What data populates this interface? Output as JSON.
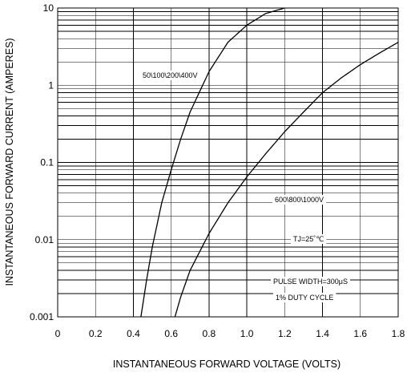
{
  "chart_data": {
    "type": "line",
    "title": "",
    "xlabel": "INSTANTANEOUS FORWARD VOLTAGE (VOLTS)",
    "ylabel": "INSTANTANEOUS FORWARD CURRENT (AMPERES)",
    "xlim": [
      0,
      1.8
    ],
    "ylim": [
      0.001,
      10
    ],
    "y_scale": "log",
    "grid": true,
    "x_ticks": [
      "0",
      "0.2",
      "0.4",
      "0.6",
      "0.8",
      "1.0",
      "1.2",
      "1.4",
      "1.6",
      "1.8"
    ],
    "y_ticks": [
      "0.001",
      "0.01",
      "0.1",
      "1",
      "10"
    ],
    "series": [
      {
        "name": "50\\100\\200\\400V",
        "points": [
          [
            0.44,
            0.001
          ],
          [
            0.47,
            0.003
          ],
          [
            0.5,
            0.008
          ],
          [
            0.55,
            0.03
          ],
          [
            0.6,
            0.08
          ],
          [
            0.65,
            0.2
          ],
          [
            0.7,
            0.45
          ],
          [
            0.8,
            1.5
          ],
          [
            0.9,
            3.6
          ],
          [
            1.0,
            6.0
          ],
          [
            1.1,
            8.5
          ],
          [
            1.2,
            10
          ]
        ]
      },
      {
        "name": "600\\800\\1000V",
        "points": [
          [
            0.62,
            0.001
          ],
          [
            0.65,
            0.0018
          ],
          [
            0.7,
            0.004
          ],
          [
            0.8,
            0.012
          ],
          [
            0.9,
            0.03
          ],
          [
            1.0,
            0.065
          ],
          [
            1.1,
            0.13
          ],
          [
            1.2,
            0.25
          ],
          [
            1.3,
            0.45
          ],
          [
            1.4,
            0.8
          ],
          [
            1.5,
            1.25
          ],
          [
            1.6,
            1.85
          ],
          [
            1.7,
            2.6
          ],
          [
            1.8,
            3.6
          ]
        ]
      }
    ],
    "annotations": [
      "TJ=25˚℃",
      "PULSE WIDTH=300μS",
      "1% DUTY CYCLE"
    ]
  }
}
